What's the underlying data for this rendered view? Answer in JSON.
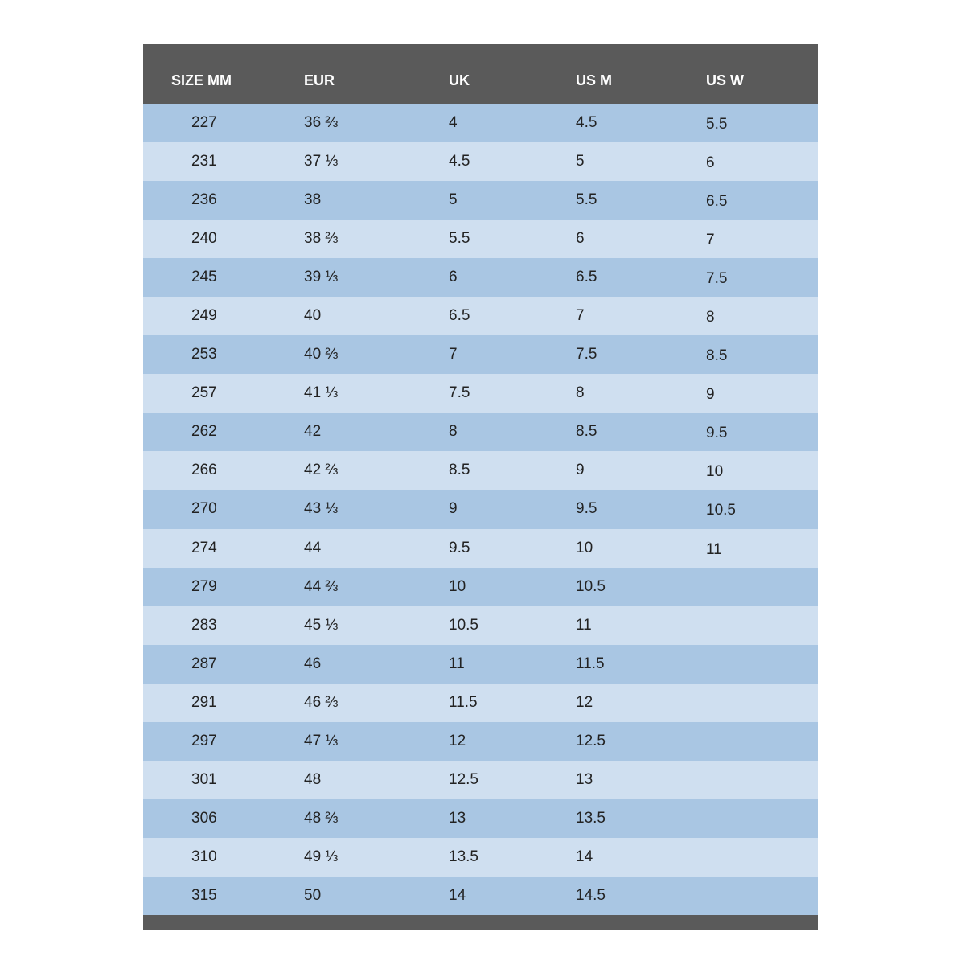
{
  "table": {
    "header": [
      "SIZE MM",
      "EUR",
      "UK",
      "US M",
      "US W"
    ],
    "rows": [
      [
        "227",
        "36 ⅔",
        "4",
        "4.5",
        "5.5"
      ],
      [
        "231",
        "37 ⅓",
        "4.5",
        "5",
        "6"
      ],
      [
        "236",
        "38",
        "5",
        "5.5",
        "6.5"
      ],
      [
        "240",
        "38 ⅔",
        "5.5",
        "6",
        "7"
      ],
      [
        "245",
        "39 ⅓",
        "6",
        "6.5",
        "7.5"
      ],
      [
        "249",
        "40",
        "6.5",
        "7",
        "8"
      ],
      [
        "253",
        "40 ⅔",
        "7",
        "7.5",
        "8.5"
      ],
      [
        "257",
        "41 ⅓",
        "7.5",
        "8",
        "9"
      ],
      [
        "262",
        "42",
        "8",
        "8.5",
        "9.5"
      ],
      [
        "266",
        "42 ⅔",
        "8.5",
        "9",
        "10"
      ],
      [
        "270",
        "43 ⅓",
        "9",
        "9.5",
        "10.5"
      ],
      [
        "274",
        "44",
        "9.5",
        "10",
        "11"
      ],
      [
        "279",
        "44 ⅔",
        "10",
        "10.5"
      ],
      [
        "283",
        "45 ⅓",
        "10.5",
        "11"
      ],
      [
        "287",
        "46",
        "11",
        "11.5"
      ],
      [
        "291",
        "46 ⅔",
        "11.5",
        "12"
      ],
      [
        "297",
        "47 ⅓",
        "12",
        "12.5"
      ],
      [
        "301",
        "48",
        "12.5",
        "13"
      ],
      [
        "306",
        "48 ⅔",
        "13",
        "13.5"
      ],
      [
        "310",
        "49 ⅓",
        "13.5",
        "14"
      ],
      [
        "315",
        "50",
        "14",
        "14.5"
      ]
    ]
  }
}
